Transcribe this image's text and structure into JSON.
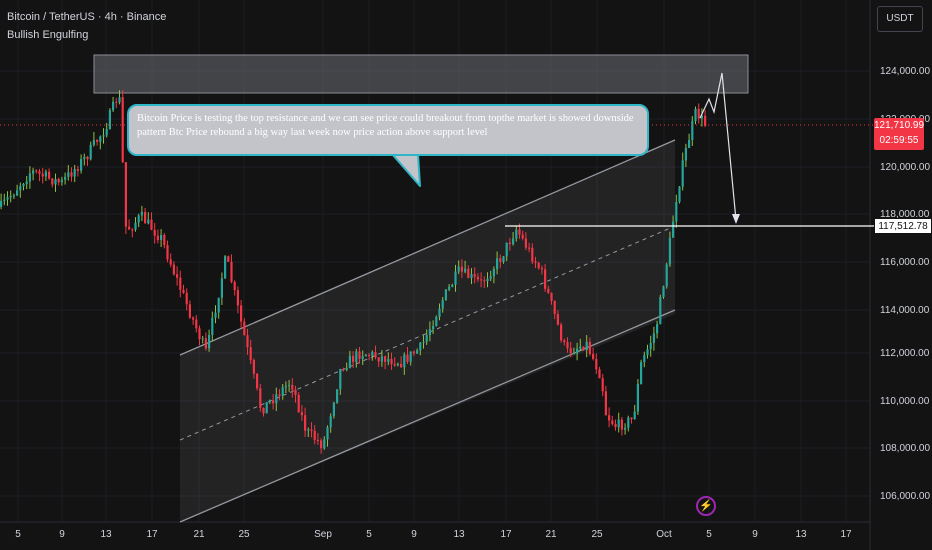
{
  "header": {
    "title": "Bitcoin / TetherUS · 4h · Binance",
    "indicator": "Bullish Engulfing"
  },
  "currency": "USDT",
  "callout": {
    "text": "Bitcoin Price is testing the top resistance and we can see price could breakout from topthe market is showed downside pattern Btc Price rebound a big way last week now price action above support level"
  },
  "price_axis": [
    "124,000.00",
    "122,000.00",
    "120,000.00",
    "118,000.00",
    "116,000.00",
    "114,000.00",
    "112,000.00",
    "110,000.00",
    "108,000.00",
    "106,000.00"
  ],
  "time_axis": [
    "5",
    "9",
    "13",
    "17",
    "21",
    "25",
    "Sep",
    "5",
    "9",
    "13",
    "17",
    "21",
    "25",
    "Oct",
    "5",
    "9",
    "13",
    "17"
  ],
  "last_price": {
    "value": "121,710.99",
    "countdown": "02:59:55"
  },
  "level_price": "117,512.78",
  "colors": {
    "up": "#26a69a",
    "down": "#f23645",
    "up_wick": "#8bc34a",
    "callout_border": "#2fb6c8"
  },
  "icons": {
    "alert": "lightning-bolt-icon"
  }
}
